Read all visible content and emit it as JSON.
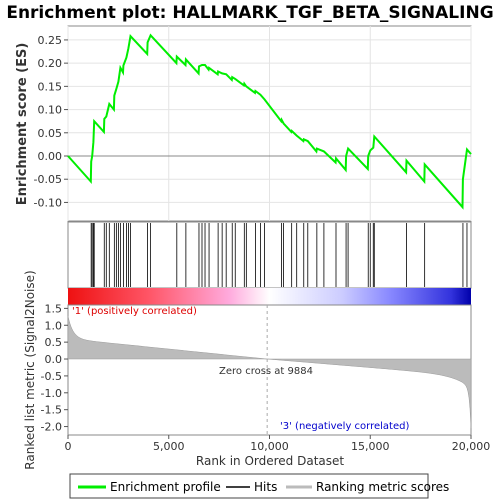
{
  "chart_data": {
    "type": "line",
    "title": "Enrichment plot: HALLMARK_TGF_BETA_SIGNALING",
    "xlabel": "Rank in Ordered Dataset",
    "ylabel_top": "Enrichment score (ES)",
    "ylabel_bottom": "Ranked list metric (Signal2Noise)",
    "xlim": [
      0,
      20000
    ],
    "x_ticks": [
      0,
      5000,
      10000,
      15000,
      20000
    ],
    "x_tick_labels": [
      "0",
      "5,000",
      "10,000",
      "15,000",
      "20,000"
    ],
    "es_ylim": [
      -0.14,
      0.28
    ],
    "es_ticks": [
      -0.1,
      -0.05,
      0.0,
      0.05,
      0.1,
      0.15,
      0.2,
      0.25
    ],
    "es_tick_labels": [
      "-0.10",
      "-0.05",
      "0.00",
      "0.05",
      "0.10",
      "0.15",
      "0.20",
      "0.25"
    ],
    "metric_ylim": [
      -2.25,
      1.6
    ],
    "metric_ticks": [
      -2.0,
      -1.5,
      -1.0,
      -0.5,
      0.0,
      0.5,
      1.0,
      1.5
    ],
    "metric_tick_labels": [
      "-2.0",
      "-1.5",
      "-1.0",
      "-0.5",
      "0.0",
      "0.5",
      "1.0",
      "1.5"
    ],
    "zero_cross": 9884,
    "zero_cross_label": "Zero cross at 9884",
    "pos_label": "'1' (positively correlated)",
    "neg_label": "'3' (negatively correlated)",
    "hits": [
      1150,
      1200,
      1260,
      1300,
      1800,
      1900,
      2050,
      2300,
      2400,
      2500,
      2600,
      2750,
      2900,
      3000,
      3100,
      3950,
      4100,
      5400,
      5850,
      6500,
      6650,
      6800,
      7000,
      7450,
      7650,
      7850,
      8150,
      8300,
      8750,
      8850,
      9300,
      9550,
      9750,
      10600,
      10700,
      11100,
      11350,
      11700,
      11900,
      12350,
      12700,
      13300,
      13800,
      13900,
      14900,
      15000,
      15150,
      15200,
      16800,
      17700,
      19600,
      19800
    ],
    "es_curve": [
      [
        0,
        0.0
      ],
      [
        1130,
        -0.055
      ],
      [
        1150,
        -0.012
      ],
      [
        1200,
        0.0
      ],
      [
        1260,
        0.03
      ],
      [
        1300,
        0.075
      ],
      [
        1780,
        0.052
      ],
      [
        1800,
        0.08
      ],
      [
        1900,
        0.085
      ],
      [
        2050,
        0.112
      ],
      [
        2280,
        0.1
      ],
      [
        2300,
        0.13
      ],
      [
        2400,
        0.145
      ],
      [
        2500,
        0.16
      ],
      [
        2600,
        0.19
      ],
      [
        2730,
        0.18
      ],
      [
        2750,
        0.195
      ],
      [
        2900,
        0.212
      ],
      [
        3000,
        0.232
      ],
      [
        3100,
        0.258
      ],
      [
        3930,
        0.22
      ],
      [
        3950,
        0.245
      ],
      [
        4100,
        0.26
      ],
      [
        5380,
        0.2
      ],
      [
        5400,
        0.214
      ],
      [
        5830,
        0.196
      ],
      [
        5850,
        0.208
      ],
      [
        6480,
        0.178
      ],
      [
        6500,
        0.193
      ],
      [
        6650,
        0.196
      ],
      [
        6800,
        0.196
      ],
      [
        6980,
        0.186
      ],
      [
        7000,
        0.19
      ],
      [
        7430,
        0.176
      ],
      [
        7450,
        0.182
      ],
      [
        7650,
        0.178
      ],
      [
        7850,
        0.176
      ],
      [
        8130,
        0.164
      ],
      [
        8150,
        0.17
      ],
      [
        8300,
        0.166
      ],
      [
        8730,
        0.152
      ],
      [
        8750,
        0.156
      ],
      [
        8850,
        0.15
      ],
      [
        9280,
        0.136
      ],
      [
        9300,
        0.14
      ],
      [
        9550,
        0.132
      ],
      [
        9750,
        0.122
      ],
      [
        10580,
        0.075
      ],
      [
        10600,
        0.078
      ],
      [
        10700,
        0.07
      ],
      [
        11080,
        0.052
      ],
      [
        11100,
        0.054
      ],
      [
        11350,
        0.044
      ],
      [
        11680,
        0.032
      ],
      [
        11700,
        0.036
      ],
      [
        11900,
        0.032
      ],
      [
        12330,
        0.01
      ],
      [
        12350,
        0.016
      ],
      [
        12700,
        0.01
      ],
      [
        13280,
        -0.014
      ],
      [
        13300,
        -0.005
      ],
      [
        13780,
        -0.03
      ],
      [
        13800,
        0.0
      ],
      [
        13900,
        0.016
      ],
      [
        14880,
        -0.028
      ],
      [
        14900,
        0.0
      ],
      [
        15000,
        0.012
      ],
      [
        15150,
        0.018
      ],
      [
        15200,
        0.042
      ],
      [
        16780,
        -0.035
      ],
      [
        16800,
        -0.01
      ],
      [
        17680,
        -0.055
      ],
      [
        17700,
        -0.018
      ],
      [
        19580,
        -0.11
      ],
      [
        19600,
        -0.05
      ],
      [
        19800,
        0.014
      ],
      [
        20000,
        0.004
      ]
    ]
  },
  "legend": {
    "items": [
      {
        "label": "Enrichment profile",
        "color": "#00ee00"
      },
      {
        "label": "Hits",
        "color": "#000000"
      },
      {
        "label": "Ranking metric scores",
        "color": "#bbbbbb"
      }
    ]
  },
  "colors": {
    "es_line": "#00ee00",
    "hit_line": "#000000",
    "metric_fill": "#bbbbbb",
    "pos_label": "#dd0000",
    "neg_label": "#0000cc"
  }
}
